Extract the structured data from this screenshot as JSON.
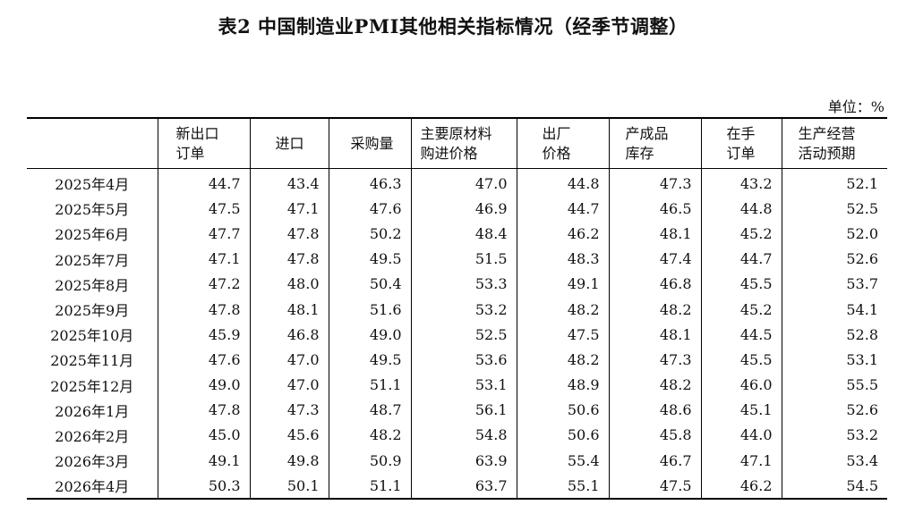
{
  "title": "表2 中国制造业PMI其他相关指标情况（经季节调整）",
  "unit": "单位：%",
  "columns": [
    "新出口\n订单",
    "进口",
    "采购量",
    "主要原材料\n购进价格",
    "出厂\n价格",
    "产成品\n库存",
    "在手\n订单",
    "生产经营\n活动预期"
  ],
  "rows": [
    {
      "month": "2025年4月",
      "values": [
        "44.7",
        "43.4",
        "46.3",
        "47.0",
        "44.8",
        "47.3",
        "43.2",
        "52.1"
      ]
    },
    {
      "month": "2025年5月",
      "values": [
        "47.5",
        "47.1",
        "47.6",
        "46.9",
        "44.7",
        "46.5",
        "44.8",
        "52.5"
      ]
    },
    {
      "month": "2025年6月",
      "values": [
        "47.7",
        "47.8",
        "50.2",
        "48.4",
        "46.2",
        "48.1",
        "45.2",
        "52.0"
      ]
    },
    {
      "month": "2025年7月",
      "values": [
        "47.1",
        "47.8",
        "49.5",
        "51.5",
        "48.3",
        "47.4",
        "44.7",
        "52.6"
      ]
    },
    {
      "month": "2025年8月",
      "values": [
        "47.2",
        "48.0",
        "50.4",
        "53.3",
        "49.1",
        "46.8",
        "45.5",
        "53.7"
      ]
    },
    {
      "month": "2025年9月",
      "values": [
        "47.8",
        "48.1",
        "51.6",
        "53.2",
        "48.2",
        "48.2",
        "45.2",
        "54.1"
      ]
    },
    {
      "month": "2025年10月",
      "values": [
        "45.9",
        "46.8",
        "49.0",
        "52.5",
        "47.5",
        "48.1",
        "44.5",
        "52.8"
      ]
    },
    {
      "month": "2025年11月",
      "values": [
        "47.6",
        "47.0",
        "49.5",
        "53.6",
        "48.2",
        "47.3",
        "45.5",
        "53.1"
      ]
    },
    {
      "month": "2025年12月",
      "values": [
        "49.0",
        "47.0",
        "51.1",
        "53.1",
        "48.9",
        "48.2",
        "46.0",
        "55.5"
      ]
    },
    {
      "month": "2026年1月",
      "values": [
        "47.8",
        "47.3",
        "48.7",
        "56.1",
        "50.6",
        "48.6",
        "45.1",
        "52.6"
      ]
    },
    {
      "month": "2026年2月",
      "values": [
        "45.0",
        "45.6",
        "48.2",
        "54.8",
        "50.6",
        "45.8",
        "44.0",
        "53.2"
      ]
    },
    {
      "month": "2026年3月",
      "values": [
        "49.1",
        "49.8",
        "50.9",
        "63.9",
        "55.4",
        "46.7",
        "47.1",
        "53.4"
      ]
    },
    {
      "month": "2026年4月",
      "values": [
        "50.3",
        "50.1",
        "51.1",
        "63.7",
        "55.1",
        "47.5",
        "46.2",
        "54.5"
      ]
    }
  ]
}
